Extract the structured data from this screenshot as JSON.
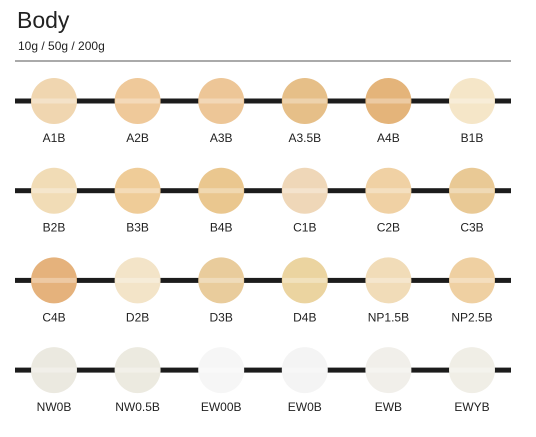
{
  "header": {
    "title": "Body",
    "subtitle": "10g / 50g / 200g"
  },
  "rows": [
    [
      {
        "label": "A1B",
        "color": "#f0d6b0"
      },
      {
        "label": "A2B",
        "color": "#efc99a"
      },
      {
        "label": "A3B",
        "color": "#edc697"
      },
      {
        "label": "A3.5B",
        "color": "#e6bf88"
      },
      {
        "label": "A4B",
        "color": "#e4b47a"
      },
      {
        "label": "B1B",
        "color": "#f5e6c8"
      }
    ],
    [
      {
        "label": "B2B",
        "color": "#f1dcb6"
      },
      {
        "label": "B3B",
        "color": "#efcc98"
      },
      {
        "label": "B4B",
        "color": "#eac78f"
      },
      {
        "label": "C1B",
        "color": "#efd7b8"
      },
      {
        "label": "C2B",
        "color": "#f0d1a4"
      },
      {
        "label": "C3B",
        "color": "#e9c995"
      }
    ],
    [
      {
        "label": "C4B",
        "color": "#e5b27c"
      },
      {
        "label": "D2B",
        "color": "#f3e4c8"
      },
      {
        "label": "D3B",
        "color": "#e9cc9c"
      },
      {
        "label": "D4B",
        "color": "#ebd4a0"
      },
      {
        "label": "NP1.5B",
        "color": "#f1dcb8"
      },
      {
        "label": "NP2.5B",
        "color": "#efd0a2"
      }
    ],
    [
      {
        "label": "NW0B",
        "color": "#ebe9e0"
      },
      {
        "label": "NW0.5B",
        "color": "#eceae0"
      },
      {
        "label": "EW00B",
        "color": "#f6f6f6"
      },
      {
        "label": "EW0B",
        "color": "#f4f4f4"
      },
      {
        "label": "EWB",
        "color": "#f1efea"
      },
      {
        "label": "EWYB",
        "color": "#f0eee6"
      }
    ]
  ]
}
